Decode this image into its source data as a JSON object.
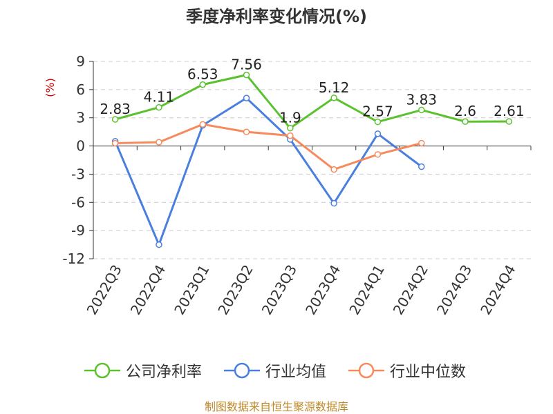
{
  "chart_data": {
    "type": "line",
    "title": "季度净利率变化情况(%)",
    "ylabel": "(%)",
    "categories": [
      "2022Q3",
      "2022Q4",
      "2023Q1",
      "2023Q2",
      "2023Q3",
      "2023Q4",
      "2024Q1",
      "2024Q2",
      "2024Q3",
      "2024Q4"
    ],
    "yticks": [
      "9",
      "6",
      "3",
      "0",
      "-3",
      "-6",
      "-9",
      "-12"
    ],
    "ylim": [
      -12,
      9
    ],
    "grid": true,
    "legend_position": "bottom",
    "series": [
      {
        "name": "公司净利率",
        "color": "#5bc12f",
        "labels": true,
        "values": [
          2.83,
          4.11,
          6.53,
          7.56,
          1.9,
          5.12,
          2.57,
          3.83,
          2.6,
          2.61
        ],
        "value_labels": [
          "2.83",
          "4.11",
          "6.53",
          "7.56",
          "1.9",
          "5.12",
          "2.57",
          "3.83",
          "2.6",
          "2.61"
        ]
      },
      {
        "name": "行业均值",
        "color": "#4a7fde",
        "labels": false,
        "values": [
          0.5,
          -10.5,
          2.2,
          5.1,
          0.7,
          -6.1,
          1.3,
          -2.2,
          null,
          null
        ]
      },
      {
        "name": "行业中位数",
        "color": "#f78a5d",
        "labels": false,
        "values": [
          0.3,
          0.4,
          2.3,
          1.5,
          1.1,
          -2.5,
          -0.9,
          0.3,
          null,
          null
        ]
      }
    ]
  },
  "source_text": "制图数据来自恒生聚源数据库"
}
